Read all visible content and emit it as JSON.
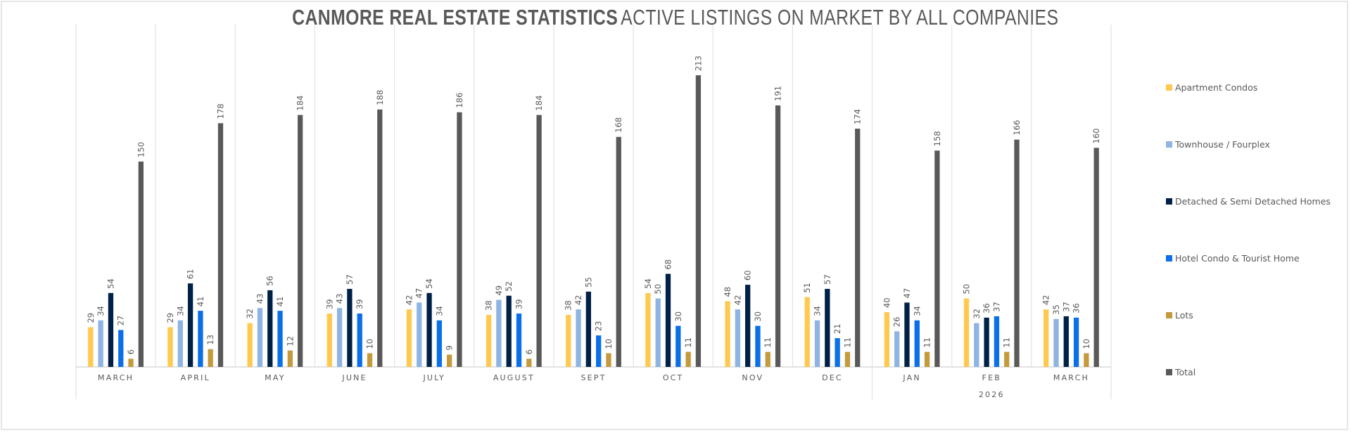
{
  "chart_data": {
    "type": "bar",
    "title": {
      "bold": "CANMORE REAL ESTATE STATISTICS",
      "light": "ACTIVE LISTINGS ON MARKET BY ALL COMPANIES"
    },
    "xlabel": "",
    "ylabel": "",
    "ylim": [
      0,
      250
    ],
    "grid": "vertical category separators",
    "legend_position": "right",
    "categories": [
      "MARCH",
      "APRIL",
      "MAY",
      "JUNE",
      "JULY",
      "AUGUST",
      "SEPT",
      "OCT",
      "NOV",
      "DEC",
      "JAN",
      "FEB",
      "MARCH"
    ],
    "category_groups": [
      {
        "label": "",
        "start": 0,
        "end": 9
      },
      {
        "label": "2026",
        "start": 10,
        "end": 12
      }
    ],
    "series": [
      {
        "name": "Apartment Condos",
        "color": "#FFC94F",
        "values": [
          29,
          29,
          32,
          39,
          42,
          38,
          38,
          54,
          48,
          51,
          40,
          50,
          42
        ]
      },
      {
        "name": "Townhouse / Fourplex",
        "color": "#8DB4E2",
        "values": [
          34,
          34,
          43,
          43,
          47,
          49,
          42,
          50,
          42,
          34,
          26,
          32,
          35
        ]
      },
      {
        "name": "Detached & Semi Detached Homes",
        "color": "#002147",
        "values": [
          54,
          61,
          56,
          57,
          54,
          52,
          55,
          68,
          60,
          57,
          47,
          36,
          37
        ]
      },
      {
        "name": "Hotel Condo & Tourist Home",
        "color": "#0A6FE8",
        "values": [
          27,
          41,
          41,
          39,
          34,
          39,
          23,
          30,
          30,
          21,
          34,
          37,
          36
        ]
      },
      {
        "name": "Lots",
        "color": "#C49A3C",
        "values": [
          6,
          13,
          12,
          10,
          9,
          6,
          10,
          11,
          11,
          11,
          11,
          11,
          10
        ]
      },
      {
        "name": "Total",
        "color": "#595959",
        "values": [
          150,
          178,
          184,
          188,
          186,
          184,
          168,
          213,
          191,
          174,
          158,
          166,
          160
        ]
      }
    ]
  }
}
